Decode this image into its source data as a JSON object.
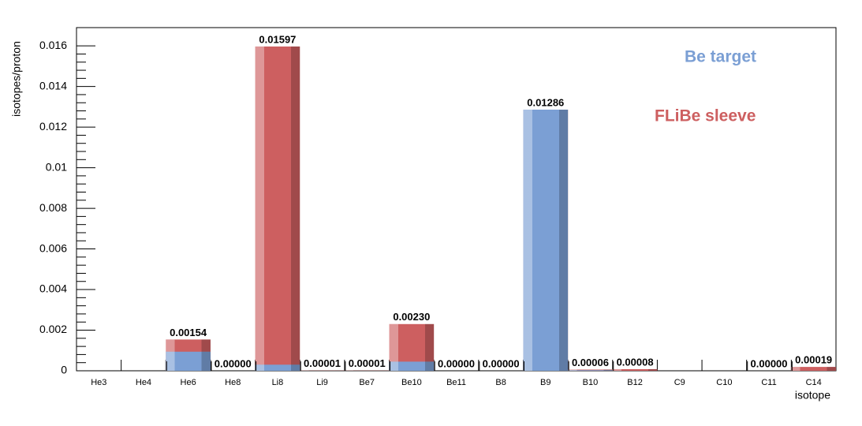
{
  "chart_data": {
    "type": "bar",
    "y_label": "isotopes/proton",
    "x_label": "isotope",
    "categories": [
      "He3",
      "He4",
      "He6",
      "He8",
      "Li8",
      "Li9",
      "Be7",
      "Be10",
      "Be11",
      "B8",
      "B9",
      "B10",
      "B12",
      "C9",
      "C10",
      "C11",
      "C14"
    ],
    "series": [
      {
        "name": "FLiBe sleeve",
        "color": "#cd5f60",
        "values": [
          0,
          0,
          0.00154,
          0,
          0.01597,
          1e-05,
          1e-05,
          0.0023,
          0,
          0,
          0.01286,
          6e-05,
          8e-05,
          0,
          0,
          0,
          0.00019
        ],
        "value_labels": [
          null,
          null,
          "0.00154",
          "0.00000",
          "0.01597",
          "0.00001",
          "0.00001",
          "0.00230",
          "0.00000",
          "0.00000",
          "0.01286",
          "0.00006",
          "0.00008",
          null,
          null,
          "0.00000",
          "0.00019"
        ]
      },
      {
        "name": "Be target",
        "color": "#7b9fd4",
        "values": [
          0,
          0,
          0.00094,
          0,
          0.0003,
          0,
          0,
          0.00045,
          0,
          0,
          0.01286,
          3e-05,
          0,
          0,
          0,
          0,
          0
        ]
      }
    ],
    "ylim": [
      0,
      0.0169
    ],
    "yticks": [
      0,
      0.002,
      0.004,
      0.006,
      0.008,
      0.01,
      0.012,
      0.014,
      0.016
    ]
  }
}
